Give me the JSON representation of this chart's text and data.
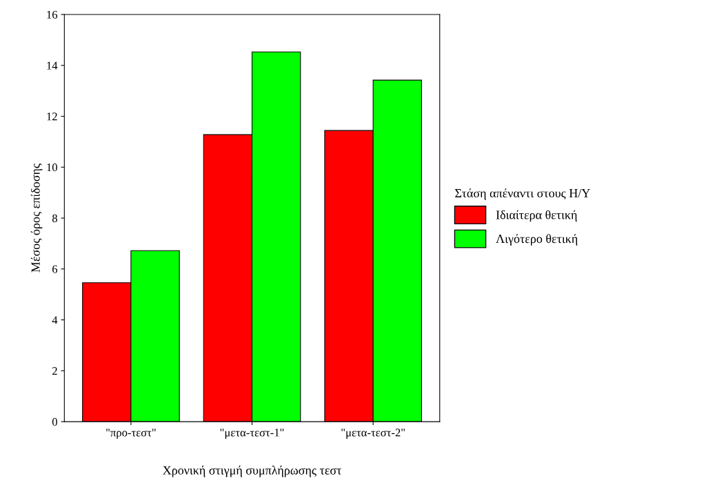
{
  "chart_data": {
    "type": "bar",
    "xlabel": "Χρονική στιγμή συμπλήρωσης τεστ",
    "ylabel": "Μέσος όρος επίδοσης",
    "legend_title": "Στάση απέναντι στους Η/Υ",
    "categories": [
      "\"προ-τεστ\"",
      "\"μετα-τεστ-1\"",
      "\"μετα-τεστ-2\""
    ],
    "series": [
      {
        "name": "Ιδιαίτερα θετική",
        "color": "#ff0000",
        "values": [
          5.46,
          11.28,
          11.44
        ]
      },
      {
        "name": "Λιγότερο θετική",
        "color": "#00ff00",
        "values": [
          6.72,
          14.53,
          13.42
        ]
      }
    ],
    "ylim": [
      0,
      16
    ],
    "yticks": [
      0,
      2,
      4,
      6,
      8,
      10,
      12,
      14,
      16
    ],
    "grid": false,
    "legend": "right"
  }
}
